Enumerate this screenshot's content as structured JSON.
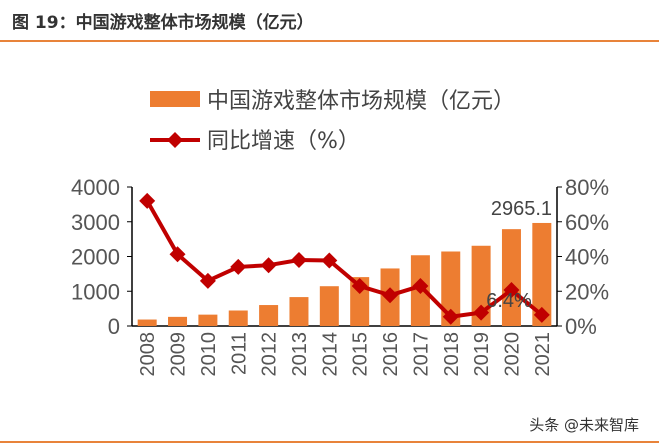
{
  "title": "图 19：中国游戏整体市场规模（亿元）",
  "watermark": "头条 @未来智库",
  "chart_data": {
    "type": "bar+line",
    "categories": [
      "2008",
      "2009",
      "2010",
      "2011",
      "2012",
      "2013",
      "2014",
      "2015",
      "2016",
      "2017",
      "2018",
      "2019",
      "2020",
      "2021"
    ],
    "series": [
      {
        "name": "中国游戏整体市场规模（亿元）",
        "type": "bar",
        "axis": "left",
        "color": "#ed7d31",
        "values": [
          186,
          263,
          327,
          446,
          603,
          832,
          1145,
          1407,
          1656,
          2036,
          2144,
          2309,
          2787,
          2965.1
        ]
      },
      {
        "name": "同比增速（%）",
        "type": "line",
        "axis": "right",
        "color": "#c00000",
        "values": [
          72,
          41.3,
          26,
          34,
          35,
          38,
          37.7,
          23,
          17.7,
          23,
          5.3,
          7.7,
          20.7,
          6.4
        ]
      }
    ],
    "left_axis": {
      "ylim": [
        0,
        4000
      ],
      "ticks": [
        "0",
        "1000",
        "2000",
        "3000",
        "4000"
      ]
    },
    "right_axis": {
      "ylim": [
        0,
        80
      ],
      "ticks": [
        "0%",
        "20%",
        "40%",
        "60%",
        "80%"
      ]
    },
    "data_labels": {
      "bar_last": "2965.1",
      "line_last": "6.4%"
    },
    "legend": "top-left",
    "grid": false
  }
}
